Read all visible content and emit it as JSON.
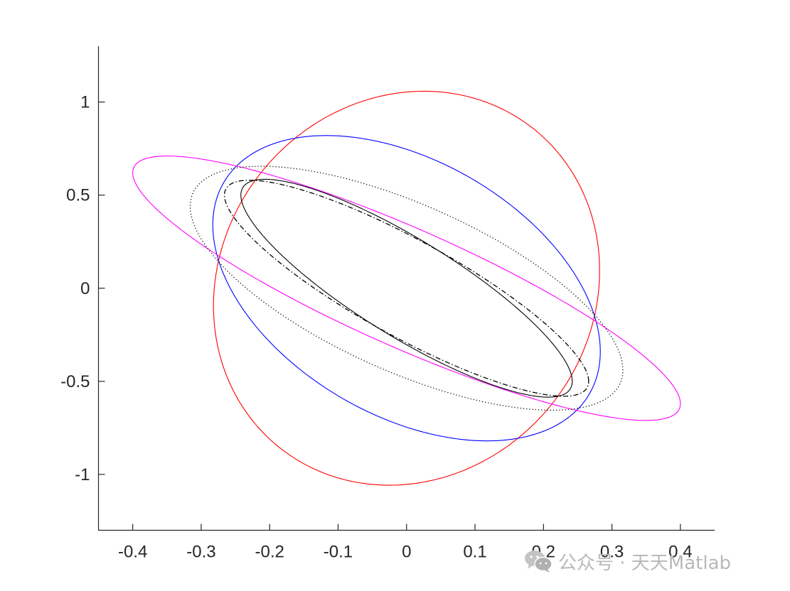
{
  "chart_data": {
    "type": "line",
    "title": "",
    "xlabel": "",
    "ylabel": "",
    "xlim": [
      -0.45,
      0.45
    ],
    "ylim": [
      -1.3,
      1.3
    ],
    "grid": false,
    "legend": "none",
    "xticks": [
      -0.4,
      -0.3,
      -0.2,
      -0.1,
      0,
      0.1,
      0.2,
      0.3,
      0.4
    ],
    "xtick_labels": [
      "-0.4",
      "-0.3",
      "-0.2",
      "-0.1",
      "0",
      "0.1",
      "0.2",
      "0.3",
      "0.4"
    ],
    "yticks": [
      -1,
      -0.5,
      0,
      0.5,
      1
    ],
    "ytick_labels": [
      "-1",
      "-0.5",
      "0",
      "0.5",
      "1"
    ],
    "series": [
      {
        "color": "#ff0000",
        "style": "solid",
        "ellipse": {
          "cx": 0.0,
          "cy": 0.0,
          "x_extent": 0.282,
          "y_extent": 1.058,
          "x_at_top": -0.035,
          "y_at_right": 0.095
        }
      },
      {
        "color": "#0000ff",
        "style": "solid",
        "ellipse": {
          "cx": 0.0,
          "cy": 0.0,
          "x_extent": 0.283,
          "y_extent": 0.82,
          "x_at_top": -0.135,
          "y_at_right": -0.34
        }
      },
      {
        "color": "#ff00ff",
        "style": "solid",
        "ellipse": {
          "cx": 0.0,
          "cy": 0.0,
          "x_extent": 0.4,
          "y_extent": 0.71,
          "x_at_top": -0.35,
          "y_at_right": -0.62
        }
      },
      {
        "color": "#000000",
        "style": "dotted",
        "ellipse": {
          "cx": 0.0,
          "cy": 0.0,
          "x_extent": 0.316,
          "y_extent": 0.655,
          "x_at_top": -0.2,
          "y_at_right": -0.44
        }
      },
      {
        "color": "#000000",
        "style": "dashdot",
        "ellipse": {
          "cx": 0.0,
          "cy": 0.0,
          "x_extent": 0.266,
          "y_extent": 0.58,
          "x_at_top": -0.195,
          "y_at_right": -0.5
        }
      },
      {
        "color": "#000000",
        "style": "solid",
        "ellipse": {
          "cx": 0.0,
          "cy": 0.0,
          "x_extent": 0.242,
          "y_extent": 0.585,
          "x_at_top": -0.205,
          "y_at_right": -0.5
        }
      }
    ]
  },
  "watermark": {
    "text": "公众号 · 天天Matlab",
    "icon": "wechat-icon"
  }
}
